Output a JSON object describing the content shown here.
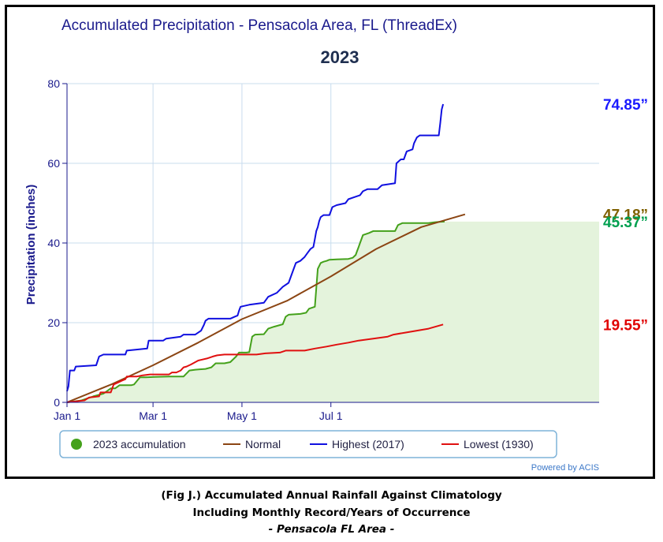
{
  "chart_data": {
    "type": "line",
    "title": "Accumulated Precipitation - Pensacola Area, FL (ThreadEx)",
    "subtitle": "2023",
    "ylabel": "Precipitation (inches)",
    "xlabel": "",
    "ylim": [
      0,
      80
    ],
    "xlim_day": [
      0,
      365
    ],
    "y_ticks": [
      0,
      20,
      40,
      60,
      80
    ],
    "x_ticks": [
      {
        "label": "Jan 1",
        "day": 0
      },
      {
        "label": "Mar 1",
        "day": 59
      },
      {
        "label": "May 1",
        "day": 120
      },
      {
        "label": "Jul 1",
        "day": 181
      }
    ],
    "grid": true,
    "legend_position": "bottom",
    "series": [
      {
        "name": "2023 accumulation",
        "color": "#44a11b",
        "fill": "#e4f3dc",
        "points": [
          [
            0,
            0
          ],
          [
            10,
            0.5
          ],
          [
            18,
            1.5
          ],
          [
            25,
            2.2
          ],
          [
            30,
            3.5
          ],
          [
            33,
            3.5
          ],
          [
            36,
            4.3
          ],
          [
            40,
            4.3
          ],
          [
            44,
            4.3
          ],
          [
            46,
            4.5
          ],
          [
            50,
            6.3
          ],
          [
            54,
            6.3
          ],
          [
            60,
            6.4
          ],
          [
            70,
            6.5
          ],
          [
            75,
            6.5
          ],
          [
            80,
            6.5
          ],
          [
            84,
            8.0
          ],
          [
            88,
            8.2
          ],
          [
            95,
            8.4
          ],
          [
            99,
            8.8
          ],
          [
            102,
            9.8
          ],
          [
            108,
            9.8
          ],
          [
            112,
            10.1
          ],
          [
            116,
            11.5
          ],
          [
            118,
            12.5
          ],
          [
            123,
            12.5
          ],
          [
            125,
            12.6
          ],
          [
            127,
            16.5
          ],
          [
            129,
            17.0
          ],
          [
            135,
            17.1
          ],
          [
            138,
            18.5
          ],
          [
            142,
            19.0
          ],
          [
            148,
            19.6
          ],
          [
            150,
            21.5
          ],
          [
            152,
            22.0
          ],
          [
            160,
            22.2
          ],
          [
            164,
            22.5
          ],
          [
            166,
            23.5
          ],
          [
            170,
            24.0
          ],
          [
            172,
            33.5
          ],
          [
            174,
            35.0
          ],
          [
            176,
            35.3
          ],
          [
            178,
            35.5
          ],
          [
            180,
            35.8
          ],
          [
            185,
            35.9
          ],
          [
            193,
            36.0
          ],
          [
            196,
            36.3
          ],
          [
            198,
            37.0
          ],
          [
            199,
            38.0
          ],
          [
            200,
            39.0
          ],
          [
            201,
            40.0
          ],
          [
            203,
            42.0
          ],
          [
            207,
            42.5
          ],
          [
            210,
            43.0
          ],
          [
            215,
            43.0
          ],
          [
            225,
            43.0
          ],
          [
            227,
            44.5
          ],
          [
            230,
            45.0
          ],
          [
            240,
            45.0
          ],
          [
            248,
            45.0
          ],
          [
            252,
            45.2
          ],
          [
            255,
            45.3
          ],
          [
            259,
            45.37
          ]
        ]
      },
      {
        "name": "Normal",
        "color": "#8b4513",
        "points": [
          [
            0,
            0
          ],
          [
            31,
            4.6
          ],
          [
            59,
            9.3
          ],
          [
            90,
            15.0
          ],
          [
            120,
            20.9
          ],
          [
            151,
            25.5
          ],
          [
            181,
            31.6
          ],
          [
            212,
            38.5
          ],
          [
            243,
            44.0
          ],
          [
            273,
            47.18
          ]
        ]
      },
      {
        "name": "Highest (2017)",
        "color": "#1010e0",
        "points": [
          [
            0,
            2.8
          ],
          [
            1,
            4.0
          ],
          [
            2,
            8.0
          ],
          [
            5,
            8.0
          ],
          [
            6,
            9.0
          ],
          [
            20,
            9.3
          ],
          [
            22,
            11.5
          ],
          [
            25,
            12.0
          ],
          [
            40,
            12.0
          ],
          [
            41,
            13.0
          ],
          [
            55,
            13.5
          ],
          [
            56,
            15.5
          ],
          [
            66,
            15.5
          ],
          [
            68,
            16.0
          ],
          [
            78,
            16.5
          ],
          [
            80,
            17.0
          ],
          [
            88,
            17.0
          ],
          [
            90,
            17.5
          ],
          [
            92,
            18.0
          ],
          [
            94,
            19.5
          ],
          [
            95,
            20.5
          ],
          [
            97,
            21.0
          ],
          [
            104,
            21.0
          ],
          [
            112,
            21.0
          ],
          [
            115,
            21.5
          ],
          [
            117,
            21.8
          ],
          [
            118,
            23.0
          ],
          [
            119,
            24.0
          ],
          [
            125,
            24.5
          ],
          [
            135,
            25.0
          ],
          [
            138,
            26.5
          ],
          [
            144,
            27.5
          ],
          [
            148,
            29.0
          ],
          [
            152,
            30.0
          ],
          [
            155,
            33.0
          ],
          [
            157,
            35.0
          ],
          [
            160,
            35.5
          ],
          [
            163,
            36.5
          ],
          [
            165,
            37.5
          ],
          [
            167,
            38.5
          ],
          [
            169,
            39.0
          ],
          [
            170,
            41.0
          ],
          [
            171,
            43.0
          ],
          [
            172,
            44.0
          ],
          [
            173,
            45.5
          ],
          [
            174,
            46.5
          ],
          [
            176,
            47.0
          ],
          [
            180,
            47.0
          ],
          [
            182,
            49.0
          ],
          [
            185,
            49.5
          ],
          [
            191,
            50.0
          ],
          [
            193,
            51.0
          ],
          [
            197,
            51.5
          ],
          [
            201,
            52.0
          ],
          [
            203,
            53.0
          ],
          [
            206,
            53.5
          ],
          [
            213,
            53.5
          ],
          [
            216,
            54.5
          ],
          [
            225,
            55.0
          ],
          [
            226,
            60.0
          ],
          [
            229,
            61.0
          ],
          [
            231,
            61.0
          ],
          [
            233,
            63.0
          ],
          [
            237,
            63.5
          ],
          [
            238,
            65.0
          ],
          [
            240,
            66.5
          ],
          [
            242,
            67.0
          ],
          [
            250,
            67.0
          ],
          [
            255,
            67.0
          ],
          [
            256,
            70.0
          ],
          [
            257,
            73.5
          ],
          [
            258,
            74.85
          ]
        ]
      },
      {
        "name": "Lowest (1930)",
        "color": "#e01010",
        "points": [
          [
            0,
            0
          ],
          [
            12,
            0.5
          ],
          [
            15,
            1.2
          ],
          [
            22,
            1.5
          ],
          [
            23,
            2.5
          ],
          [
            30,
            2.5
          ],
          [
            32,
            4.5
          ],
          [
            35,
            5.0
          ],
          [
            38,
            5.5
          ],
          [
            40,
            5.8
          ],
          [
            41,
            6.5
          ],
          [
            48,
            6.5
          ],
          [
            52,
            6.8
          ],
          [
            57,
            7.0
          ],
          [
            60,
            7.0
          ],
          [
            70,
            7.0
          ],
          [
            72,
            7.5
          ],
          [
            75,
            7.5
          ],
          [
            78,
            8.0
          ],
          [
            80,
            8.8
          ],
          [
            82,
            9.0
          ],
          [
            85,
            9.5
          ],
          [
            90,
            10.5
          ],
          [
            96,
            11.0
          ],
          [
            100,
            11.5
          ],
          [
            103,
            11.8
          ],
          [
            108,
            12.0
          ],
          [
            115,
            12.0
          ],
          [
            130,
            12.0
          ],
          [
            136,
            12.3
          ],
          [
            146,
            12.5
          ],
          [
            150,
            13.0
          ],
          [
            163,
            13.0
          ],
          [
            170,
            13.5
          ],
          [
            178,
            14.0
          ],
          [
            185,
            14.5
          ],
          [
            193,
            15.0
          ],
          [
            200,
            15.5
          ],
          [
            210,
            16.0
          ],
          [
            220,
            16.5
          ],
          [
            224,
            17.0
          ],
          [
            232,
            17.5
          ],
          [
            240,
            18.0
          ],
          [
            248,
            18.5
          ],
          [
            258,
            19.55
          ]
        ]
      }
    ],
    "end_labels": [
      {
        "text": "74.85”",
        "value": 74.85,
        "color": "#1a1aff"
      },
      {
        "text": "47.18”",
        "value": 47.18,
        "color": "#7f6000"
      },
      {
        "text": "45.37”",
        "value": 45.37,
        "color": "#00a050"
      },
      {
        "text": "19.55”",
        "value": 19.55,
        "color": "#e00000"
      }
    ],
    "credit": "Powered by ACIS"
  },
  "caption": {
    "line1": "(Fig J.) Accumulated Annual Rainfall Against  Climatology",
    "line2": "Including Monthly Record/Years of Occurrence",
    "line3": "- Pensacola FL Area -"
  }
}
